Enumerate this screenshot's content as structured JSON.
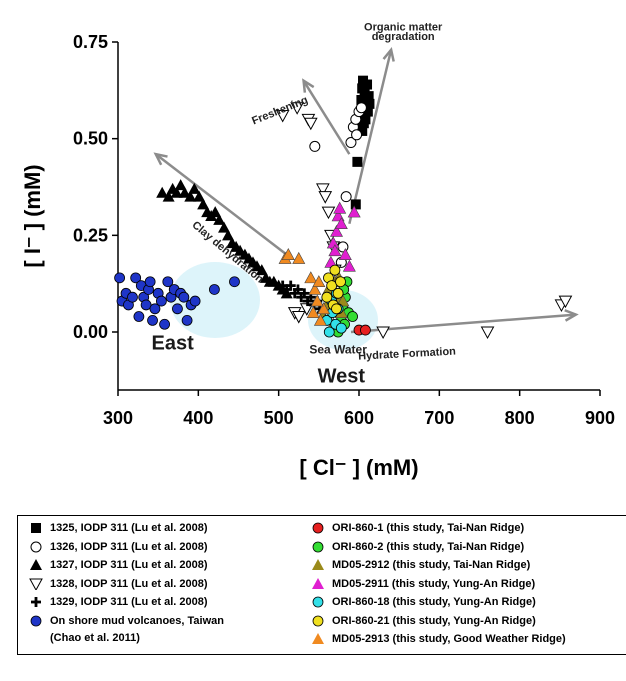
{
  "chart_data": {
    "type": "scatter",
    "xlabel": "[ Cl⁻ ] (mM)",
    "ylabel": "[ I⁻ ] (mM)",
    "xlim": [
      300,
      900
    ],
    "ylim": [
      -0.15,
      0.75
    ],
    "xticks": [
      "300",
      "400",
      "500",
      "600",
      "700",
      "800",
      "900"
    ],
    "yticks": [
      "0.00",
      "0.25",
      "0.50",
      "0.75"
    ],
    "xtick_values": [
      300,
      400,
      500,
      600,
      700,
      800,
      900
    ],
    "ytick_values": [
      0.0,
      0.25,
      0.5,
      0.75
    ],
    "grid": false,
    "series": [
      {
        "name": "1325, IODP 311 (Lu et al. 2008)",
        "marker": "square",
        "color": "#000000",
        "points": [
          [
            598,
            0.44
          ],
          [
            600,
            0.53
          ],
          [
            602,
            0.57
          ],
          [
            603,
            0.6
          ],
          [
            604,
            0.63
          ],
          [
            605,
            0.65
          ],
          [
            606,
            0.58
          ],
          [
            607,
            0.62
          ],
          [
            608,
            0.55
          ],
          [
            609,
            0.6
          ],
          [
            610,
            0.64
          ],
          [
            611,
            0.57
          ],
          [
            612,
            0.61
          ],
          [
            613,
            0.59
          ],
          [
            601,
            0.56
          ],
          [
            604,
            0.52
          ],
          [
            606,
            0.54
          ],
          [
            596,
            0.33
          ]
        ]
      },
      {
        "name": "1326, IODP 311 (Lu et al. 2008)",
        "marker": "circle_open",
        "color": "#000000",
        "points": [
          [
            545,
            0.48
          ],
          [
            590,
            0.49
          ],
          [
            593,
            0.53
          ],
          [
            596,
            0.55
          ],
          [
            597,
            0.51
          ],
          [
            600,
            0.57
          ],
          [
            603,
            0.58
          ],
          [
            584,
            0.35
          ],
          [
            580,
            0.22
          ],
          [
            578,
            0.18
          ]
        ]
      },
      {
        "name": "1327, IODP 311 (Lu et al. 2008)",
        "marker": "triangle",
        "color": "#000000",
        "points": [
          [
            355,
            0.36
          ],
          [
            363,
            0.35
          ],
          [
            368,
            0.37
          ],
          [
            373,
            0.36
          ],
          [
            378,
            0.38
          ],
          [
            383,
            0.36
          ],
          [
            390,
            0.35
          ],
          [
            395,
            0.37
          ],
          [
            401,
            0.35
          ],
          [
            406,
            0.33
          ],
          [
            411,
            0.31
          ],
          [
            416,
            0.3
          ],
          [
            421,
            0.31
          ],
          [
            426,
            0.29
          ],
          [
            432,
            0.27
          ],
          [
            437,
            0.25
          ],
          [
            442,
            0.23
          ],
          [
            447,
            0.22
          ],
          [
            452,
            0.21
          ],
          [
            458,
            0.2
          ],
          [
            463,
            0.19
          ],
          [
            468,
            0.18
          ],
          [
            473,
            0.17
          ],
          [
            479,
            0.16
          ],
          [
            484,
            0.14
          ],
          [
            489,
            0.13
          ],
          [
            494,
            0.13
          ],
          [
            500,
            0.12
          ],
          [
            505,
            0.11
          ],
          [
            510,
            0.1
          ]
        ]
      },
      {
        "name": "1328, IODP 311 (Lu et al. 2008)",
        "marker": "triangle_down_open",
        "color": "#000000",
        "points": [
          [
            505,
            0.56
          ],
          [
            523,
            0.58
          ],
          [
            537,
            0.55
          ],
          [
            540,
            0.54
          ],
          [
            555,
            0.37
          ],
          [
            558,
            0.35
          ],
          [
            562,
            0.31
          ],
          [
            565,
            0.25
          ],
          [
            568,
            0.22
          ],
          [
            570,
            0.16
          ],
          [
            573,
            0.12
          ],
          [
            575,
            0.08
          ],
          [
            570,
            0.05
          ],
          [
            568,
            0.03
          ],
          [
            630,
            0.0
          ],
          [
            760,
            0.0
          ],
          [
            852,
            0.07
          ],
          [
            857,
            0.08
          ],
          [
            520,
            0.05
          ],
          [
            525,
            0.04
          ],
          [
            535,
            0.06
          ]
        ]
      },
      {
        "name": "1329, IODP 311 (Lu et al. 2008)",
        "marker": "plus",
        "color": "#000000",
        "points": [
          [
            505,
            0.12
          ],
          [
            510,
            0.11
          ],
          [
            515,
            0.12
          ],
          [
            520,
            0.1
          ],
          [
            524,
            0.11
          ],
          [
            528,
            0.09
          ],
          [
            532,
            0.1
          ],
          [
            536,
            0.08
          ],
          [
            540,
            0.09
          ],
          [
            544,
            0.07
          ],
          [
            548,
            0.08
          ],
          [
            551,
            0.06
          ],
          [
            554,
            0.05
          ],
          [
            557,
            0.04
          ],
          [
            560,
            0.03
          ]
        ]
      },
      {
        "name": "On shore mud volcanoes, Taiwan\n(Chao et al. 2011)",
        "marker": "circle",
        "color": "#1f35c8",
        "points": [
          [
            302,
            0.14
          ],
          [
            305,
            0.08
          ],
          [
            310,
            0.1
          ],
          [
            313,
            0.07
          ],
          [
            318,
            0.09
          ],
          [
            322,
            0.14
          ],
          [
            326,
            0.04
          ],
          [
            329,
            0.12
          ],
          [
            332,
            0.09
          ],
          [
            335,
            0.07
          ],
          [
            338,
            0.11
          ],
          [
            340,
            0.13
          ],
          [
            343,
            0.03
          ],
          [
            346,
            0.06
          ],
          [
            350,
            0.1
          ],
          [
            354,
            0.08
          ],
          [
            358,
            0.02
          ],
          [
            362,
            0.13
          ],
          [
            366,
            0.09
          ],
          [
            370,
            0.11
          ],
          [
            374,
            0.06
          ],
          [
            378,
            0.1
          ],
          [
            382,
            0.09
          ],
          [
            386,
            0.03
          ],
          [
            391,
            0.07
          ],
          [
            396,
            0.08
          ],
          [
            420,
            0.11
          ],
          [
            445,
            0.13
          ]
        ]
      },
      {
        "name": "ORI-860-1  (this study, Tai-Nan Ridge)",
        "marker": "circle",
        "color": "#e62020",
        "points": [
          [
            600,
            0.005
          ],
          [
            608,
            0.005
          ]
        ]
      },
      {
        "name": "ORI-860-2  (this study, Tai-Nan Ridge)",
        "marker": "circle",
        "color": "#33dd33",
        "points": [
          [
            580,
            0.06
          ],
          [
            583,
            0.09
          ],
          [
            585,
            0.13
          ],
          [
            578,
            0.03
          ],
          [
            582,
            0.02
          ],
          [
            587,
            0.05
          ],
          [
            592,
            0.04
          ],
          [
            576,
            0.08
          ],
          [
            581,
            0.11
          ],
          [
            574,
            0.0
          ]
        ]
      },
      {
        "name": "MD05-2912  (this study, Tai-Nan Ridge)",
        "marker": "triangle",
        "color": "#9a8a1a",
        "points": [
          [
            555,
            0.04
          ],
          [
            560,
            0.07
          ],
          [
            565,
            0.1
          ],
          [
            570,
            0.13
          ],
          [
            574,
            0.09
          ],
          [
            578,
            0.05
          ],
          [
            568,
            0.02
          ],
          [
            562,
            0.11
          ],
          [
            575,
            0.14
          ],
          [
            580,
            0.08
          ]
        ]
      },
      {
        "name": "MD05-2911  (this study, Yung-An Ridge)",
        "marker": "triangle",
        "color": "#e01fd0",
        "points": [
          [
            568,
            0.23
          ],
          [
            572,
            0.26
          ],
          [
            574,
            0.3
          ],
          [
            576,
            0.32
          ],
          [
            583,
            0.2
          ],
          [
            588,
            0.17
          ],
          [
            594,
            0.31
          ],
          [
            565,
            0.18
          ],
          [
            570,
            0.21
          ],
          [
            578,
            0.28
          ]
        ]
      },
      {
        "name": "ORI-860-18  (this study, Yung-An Ridge)",
        "marker": "circle",
        "color": "#33e0e8",
        "points": [
          [
            560,
            0.03
          ],
          [
            563,
            0.0
          ],
          [
            567,
            0.05
          ],
          [
            571,
            0.02
          ],
          [
            574,
            0.06
          ],
          [
            578,
            0.01
          ],
          [
            566,
            0.08
          ],
          [
            572,
            0.1
          ]
        ]
      },
      {
        "name": "ORI-860-21  (this study, Yung-An Ridge)",
        "marker": "circle",
        "color": "#f0e020",
        "points": [
          [
            562,
            0.14
          ],
          [
            566,
            0.12
          ],
          [
            570,
            0.16
          ],
          [
            574,
            0.1
          ],
          [
            568,
            0.07
          ],
          [
            560,
            0.09
          ],
          [
            577,
            0.13
          ],
          [
            572,
            0.06
          ]
        ]
      },
      {
        "name": "MD05-2913  (this study, Good Weather Ridge)",
        "marker": "triangle",
        "color": "#f08a20",
        "points": [
          [
            508,
            0.19
          ],
          [
            512,
            0.2
          ],
          [
            525,
            0.19
          ],
          [
            540,
            0.14
          ],
          [
            545,
            0.11
          ],
          [
            550,
            0.13
          ],
          [
            556,
            0.06
          ],
          [
            552,
            0.03
          ],
          [
            548,
            0.08
          ],
          [
            543,
            0.05
          ]
        ]
      }
    ],
    "arrows": [
      {
        "from": [
          588,
          0.28
        ],
        "to": [
          640,
          0.73
        ]
      },
      {
        "from": [
          588,
          0.46
        ],
        "to": [
          531,
          0.65
        ]
      },
      {
        "from": [
          510,
          0.2
        ],
        "to": [
          347,
          0.46
        ]
      },
      {
        "from": [
          590,
          0.0
        ],
        "to": [
          870,
          0.045
        ]
      }
    ],
    "annotations": [
      {
        "text": "Organic matter",
        "x": 655,
        "y": 0.78
      },
      {
        "text": "degradation",
        "x": 655,
        "y": 0.755
      },
      {
        "text": "Freshening",
        "x": 503,
        "y": 0.565,
        "rotate": -22
      },
      {
        "text": "Clay dehydration",
        "x": 434,
        "y": 0.2,
        "rotate": 40
      },
      {
        "text": "Sea Water",
        "x": 574,
        "y": -0.055
      },
      {
        "text": "Hydrate Formation",
        "x": 660,
        "y": -0.065,
        "rotate": -3
      }
    ],
    "regions": [
      {
        "text": "East",
        "x": 368,
        "y": -0.045
      },
      {
        "text": "West",
        "x": 578,
        "y": -0.13
      }
    ]
  }
}
